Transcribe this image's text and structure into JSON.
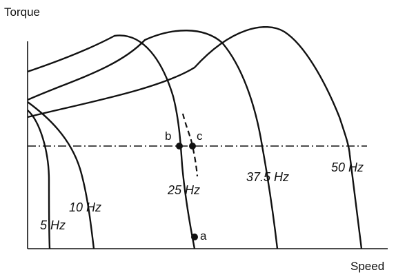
{
  "axes": {
    "y_title": "Torque",
    "x_title": "Speed"
  },
  "curves": [
    {
      "id": "5hz",
      "label": "5 Hz"
    },
    {
      "id": "10hz",
      "label": "10 Hz"
    },
    {
      "id": "25hz",
      "label": "25 Hz"
    },
    {
      "id": "37_5hz",
      "label": "37.5 Hz"
    },
    {
      "id": "50hz",
      "label": "50 Hz"
    }
  ],
  "points": [
    {
      "id": "a",
      "label": "a"
    },
    {
      "id": "b",
      "label": "b"
    },
    {
      "id": "c",
      "label": "c"
    }
  ],
  "colors": {
    "ink": "#111111",
    "background": "#ffffff"
  }
}
